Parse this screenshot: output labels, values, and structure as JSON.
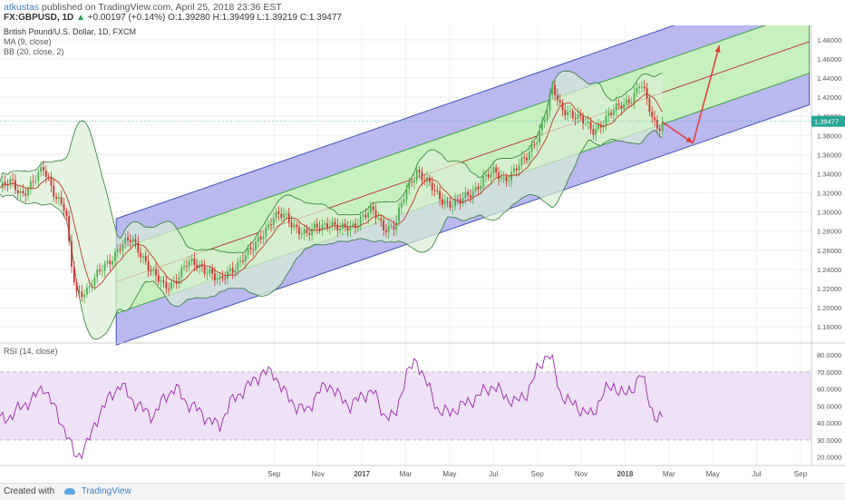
{
  "header": {
    "author": "atkustas",
    "published_text": "published on TradingView.com, April 25, 2018 23:36 EST",
    "symbol": "FX:GBPUSD, 1D",
    "change": "+0.00197 (+0.14%)",
    "ohlc_o": "O:1.39280",
    "ohlc_h": "H:1.39499",
    "ohlc_l": "L:1.39219",
    "ohlc_c": "C:1.39477",
    "price_label": "1.39477",
    "up_arrow": "▲"
  },
  "legend": {
    "title": "British Pound/U.S. Dollar, 1D, FXCM",
    "ma": "MA (9, close)",
    "bb": "BB (20, close, 2)",
    "rsi": "RSI (14, close)"
  },
  "footer": {
    "created_with": "Created with",
    "brand": "TradingView"
  },
  "colors": {
    "up_candle": "#4caf50",
    "down_candle": "#d32f2f",
    "ma": "#c0392b",
    "bb": "#2e7d32",
    "bb_fill": "#d8efd4",
    "channel_outer": "#b9b9f0",
    "channel_inner": "#c8efc0",
    "rsi_line": "#9c27b0",
    "rsi_band": "#efe1f7",
    "arrow": "#e53935"
  },
  "chart_data": {
    "type": "candlestick",
    "price_axis": {
      "ylim": [
        1.165,
        1.495
      ],
      "ticks": [
        "1.18000",
        "1.20000",
        "1.22000",
        "1.24000",
        "1.26000",
        "1.28000",
        "1.30000",
        "1.32000",
        "1.34000",
        "1.36000",
        "1.38000",
        "1.40000",
        "1.42000",
        "1.44000",
        "1.46000",
        "1.48000"
      ]
    },
    "rsi_axis": {
      "ylim": [
        15,
        86
      ],
      "ticks": [
        "20.0000",
        "30.0000",
        "40.0000",
        "50.0000",
        "60.0000",
        "70.0000",
        "80.0000"
      ],
      "overbought": 70,
      "oversold": 30
    },
    "time_axis": {
      "labels": [
        "Sep",
        "Nov",
        "2017",
        "Mar",
        "May",
        "Jul",
        "Sep",
        "Nov",
        "2018",
        "Mar",
        "May",
        "Jul",
        "Sep"
      ],
      "positions": [
        12.5,
        14.5,
        16.5,
        18.5,
        20.5,
        22.5,
        24.5,
        26.5,
        28.5,
        30.5,
        32.5,
        34.5,
        36.5
      ],
      "bold_labels": [
        "2017",
        "2018"
      ]
    },
    "price_series": [
      [
        0,
        1.325
      ],
      [
        0.5,
        1.33
      ],
      [
        1,
        1.32
      ],
      [
        1.5,
        1.33
      ],
      [
        2,
        1.345
      ],
      [
        2.5,
        1.32
      ],
      [
        3,
        1.3
      ],
      [
        3.2,
        1.25
      ],
      [
        3.5,
        1.215
      ],
      [
        4,
        1.22
      ],
      [
        4.5,
        1.235
      ],
      [
        5,
        1.25
      ],
      [
        5.5,
        1.265
      ],
      [
        6,
        1.27
      ],
      [
        6.5,
        1.255
      ],
      [
        7,
        1.235
      ],
      [
        7.5,
        1.22
      ],
      [
        8,
        1.23
      ],
      [
        8.5,
        1.245
      ],
      [
        9,
        1.245
      ],
      [
        9.5,
        1.24
      ],
      [
        10,
        1.225
      ],
      [
        10.5,
        1.24
      ],
      [
        11,
        1.25
      ],
      [
        11.5,
        1.26
      ],
      [
        12,
        1.28
      ],
      [
        12.5,
        1.295
      ],
      [
        13,
        1.295
      ],
      [
        13.5,
        1.285
      ],
      [
        14,
        1.275
      ],
      [
        14.5,
        1.285
      ],
      [
        15,
        1.29
      ],
      [
        15.5,
        1.28
      ],
      [
        16,
        1.285
      ],
      [
        16.5,
        1.295
      ],
      [
        17,
        1.3
      ],
      [
        17.5,
        1.285
      ],
      [
        18,
        1.285
      ],
      [
        18.5,
        1.32
      ],
      [
        19,
        1.345
      ],
      [
        19.5,
        1.33
      ],
      [
        20,
        1.315
      ],
      [
        20.5,
        1.31
      ],
      [
        21,
        1.31
      ],
      [
        21.5,
        1.32
      ],
      [
        22,
        1.335
      ],
      [
        22.5,
        1.34
      ],
      [
        23,
        1.335
      ],
      [
        23.5,
        1.345
      ],
      [
        24,
        1.355
      ],
      [
        24.5,
        1.38
      ],
      [
        25,
        1.41
      ],
      [
        25.2,
        1.43
      ],
      [
        25.5,
        1.41
      ],
      [
        26,
        1.405
      ],
      [
        26.5,
        1.395
      ],
      [
        27,
        1.385
      ],
      [
        27.5,
        1.395
      ],
      [
        28,
        1.405
      ],
      [
        28.5,
        1.415
      ],
      [
        29,
        1.425
      ],
      [
        29.2,
        1.435
      ],
      [
        29.5,
        1.415
      ],
      [
        29.8,
        1.395
      ],
      [
        30,
        1.39
      ],
      [
        30.2,
        1.394
      ]
    ],
    "channel": {
      "start": [
        5.3,
        1.227
      ],
      "end": [
        36.9,
        1.478
      ],
      "outer_offset": 0.066,
      "inner_offset": 0.033
    },
    "projection": {
      "points": [
        [
          30.2,
          1.394
        ],
        [
          31.6,
          1.372
        ],
        [
          32.8,
          1.474
        ]
      ]
    },
    "rsi_series": [
      [
        0,
        42
      ],
      [
        0.5,
        44
      ],
      [
        1,
        50
      ],
      [
        1.5,
        54
      ],
      [
        2,
        62
      ],
      [
        2.5,
        48
      ],
      [
        3,
        35
      ],
      [
        3.3,
        24
      ],
      [
        3.5,
        20
      ],
      [
        4,
        28
      ],
      [
        4.5,
        45
      ],
      [
        5,
        55
      ],
      [
        5.5,
        63
      ],
      [
        6,
        54
      ],
      [
        6.5,
        48
      ],
      [
        7,
        44
      ],
      [
        7.5,
        55
      ],
      [
        8,
        61
      ],
      [
        8.5,
        52
      ],
      [
        9,
        48
      ],
      [
        9.5,
        42
      ],
      [
        10,
        38
      ],
      [
        10.5,
        52
      ],
      [
        11,
        58
      ],
      [
        11.5,
        64
      ],
      [
        12,
        70
      ],
      [
        12.5,
        69
      ],
      [
        13,
        57
      ],
      [
        13.5,
        50
      ],
      [
        14,
        47
      ],
      [
        14.5,
        58
      ],
      [
        15,
        63
      ],
      [
        15.5,
        55
      ],
      [
        16,
        50
      ],
      [
        16.5,
        56
      ],
      [
        17,
        59
      ],
      [
        17.5,
        45
      ],
      [
        18,
        43
      ],
      [
        18.5,
        68
      ],
      [
        19,
        77
      ],
      [
        19.5,
        62
      ],
      [
        20,
        47
      ],
      [
        20.5,
        46
      ],
      [
        21,
        50
      ],
      [
        21.5,
        53
      ],
      [
        22,
        58
      ],
      [
        22.5,
        62
      ],
      [
        23,
        56
      ],
      [
        23.5,
        52
      ],
      [
        24,
        57
      ],
      [
        24.5,
        71
      ],
      [
        25,
        82
      ],
      [
        25.3,
        71
      ],
      [
        25.5,
        58
      ],
      [
        26,
        52
      ],
      [
        26.5,
        48
      ],
      [
        27,
        44
      ],
      [
        27.5,
        58
      ],
      [
        28,
        62
      ],
      [
        28.5,
        56
      ],
      [
        29,
        63
      ],
      [
        29.2,
        70
      ],
      [
        29.5,
        58
      ],
      [
        29.8,
        45
      ],
      [
        30,
        41
      ],
      [
        30.2,
        43
      ]
    ],
    "x_domain": [
      0,
      37
    ]
  }
}
